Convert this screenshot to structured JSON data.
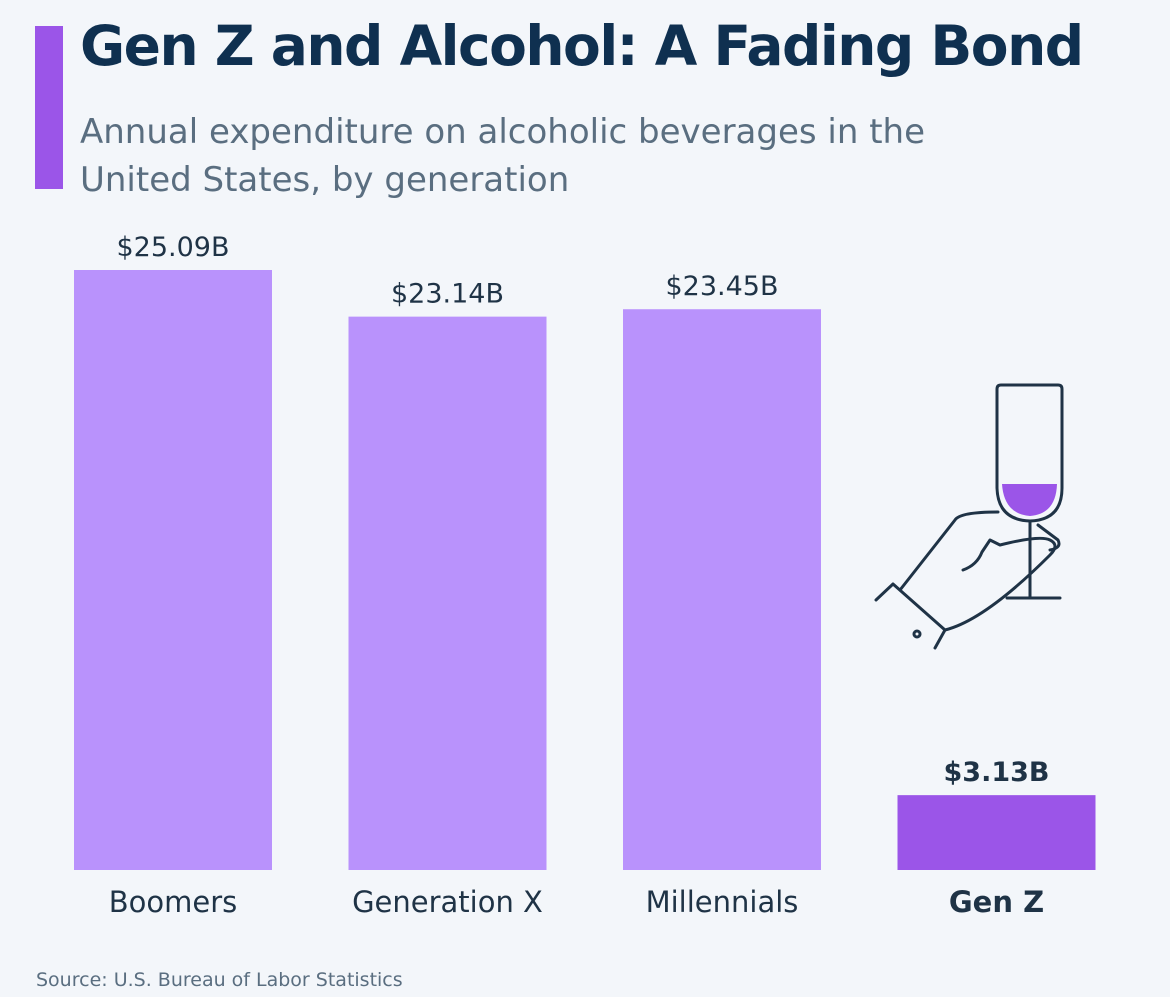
{
  "title": "Gen Z and Alcohol: A Fading Bond",
  "subtitle": "Annual expenditure on alcoholic beverages in the United States, by generation",
  "source": "Source: U.S. Bureau of Labor Statistics",
  "colors": {
    "bar": "#b992fc",
    "highlight": "#9b55e8",
    "title": "#0f3050",
    "text": "#1f3346",
    "background": "#f3f6fa"
  },
  "icon": "hand-holding-wine-glass-icon",
  "chart_data": {
    "type": "bar",
    "title": "Gen Z and Alcohol: A Fading Bond",
    "categories": [
      "Boomers",
      "Generation X",
      "Millennials",
      "Gen Z"
    ],
    "values": [
      25.09,
      23.14,
      23.45,
      3.13
    ],
    "data_labels": [
      "$25.09B",
      "$23.14B",
      "$23.45B",
      "$3.13B"
    ],
    "unit": "billion USD",
    "highlighted_category": "Gen Z",
    "ylim": [
      0,
      25.09
    ],
    "grid": false,
    "legend": "none"
  }
}
